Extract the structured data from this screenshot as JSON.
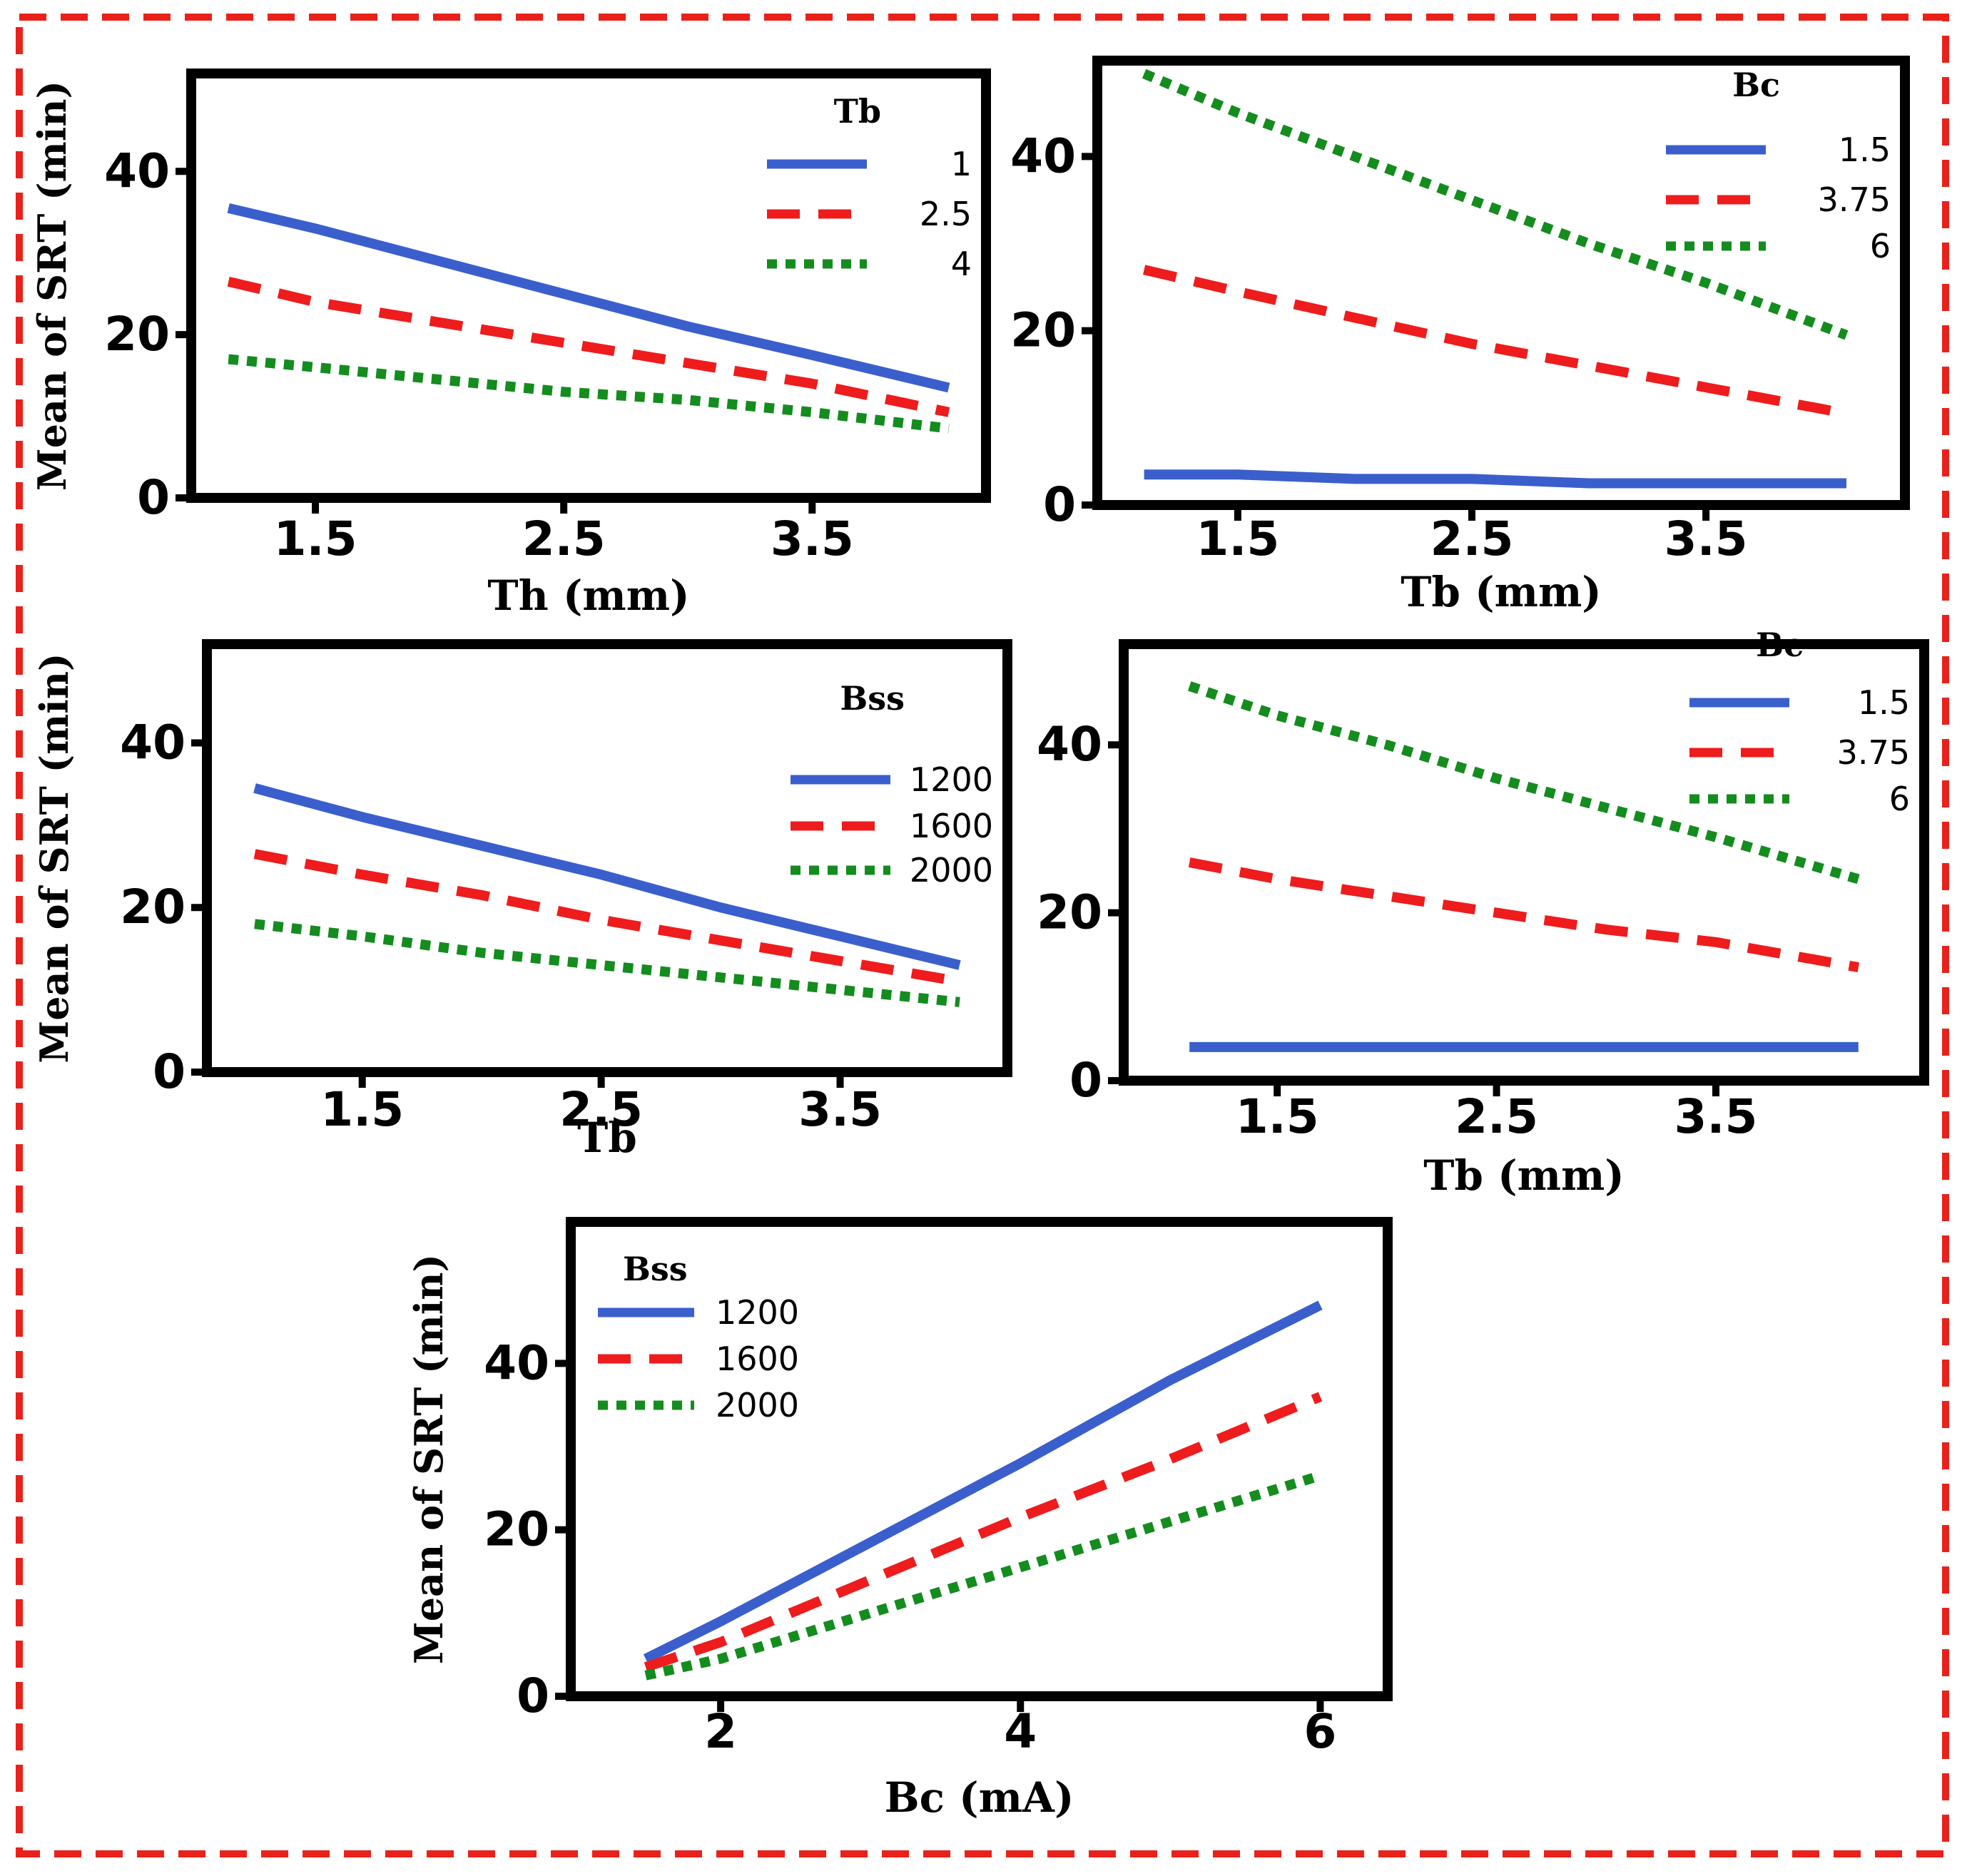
{
  "frame": {
    "border_color": "#e8221b"
  },
  "style": {
    "series_colors": [
      "#3a5fcd",
      "#ee1c1c",
      "#148c1e"
    ],
    "line_styles": [
      "solid",
      "dashed",
      "dotted"
    ]
  },
  "chart_data": [
    {
      "type": "line",
      "xlabel": "Th (mm)",
      "ylabel": "Mean of SRT (min)",
      "xticks": [
        "1.5",
        "2.5",
        "3.5"
      ],
      "yticks": [
        "0",
        "20",
        "40"
      ],
      "xlim": [
        1.0,
        4.2
      ],
      "ylim": [
        0,
        52
      ],
      "legend_title": "Tb",
      "legend_position": "top-right",
      "x": [
        1.15,
        1.5,
        2.0,
        2.5,
        3.0,
        3.5,
        4.05
      ],
      "series": [
        {
          "name": "1",
          "values": [
            35.5,
            33,
            29,
            25,
            21,
            17.5,
            13.5
          ]
        },
        {
          "name": "2.5",
          "values": [
            26.5,
            24,
            21.5,
            19,
            16.5,
            14,
            10.5
          ]
        },
        {
          "name": "4",
          "values": [
            17,
            16,
            14.5,
            13,
            12,
            10.5,
            8.5
          ]
        }
      ]
    },
    {
      "type": "line",
      "xlabel": "Tb (mm)",
      "ylabel": "",
      "xticks": [
        "1.5",
        "2.5",
        "3.5"
      ],
      "yticks": [
        "0",
        "20",
        "40"
      ],
      "xlim": [
        0.9,
        4.35
      ],
      "ylim": [
        0,
        51
      ],
      "legend_title": "Bc",
      "legend_position": "top-right",
      "x": [
        1.1,
        1.5,
        2.0,
        2.5,
        3.0,
        3.5,
        4.1
      ],
      "series": [
        {
          "name": "1.5",
          "values": [
            3.5,
            3.5,
            3,
            3,
            2.5,
            2.5,
            2.5
          ]
        },
        {
          "name": "3.75",
          "values": [
            27,
            24.5,
            21.5,
            18.5,
            16,
            13.5,
            10.5
          ]
        },
        {
          "name": "6",
          "values": [
            49.5,
            45,
            40,
            35,
            30,
            25.5,
            19.5
          ]
        }
      ]
    },
    {
      "type": "line",
      "xlabel": "Tb",
      "ylabel": "Mean of SRT (min)",
      "xticks": [
        "1.5",
        "2.5",
        "3.5"
      ],
      "yticks": [
        "0",
        "20",
        "40"
      ],
      "xlim": [
        0.85,
        4.2
      ],
      "ylim": [
        0,
        52
      ],
      "legend_title": "Bss",
      "legend_position": "top-right",
      "x": [
        1.05,
        1.5,
        2.0,
        2.5,
        3.0,
        3.5,
        4.0
      ],
      "series": [
        {
          "name": "1200",
          "values": [
            34.5,
            31,
            27.5,
            24,
            20,
            16.5,
            13
          ]
        },
        {
          "name": "1600",
          "values": [
            26.5,
            24,
            21.5,
            18.5,
            16,
            13.5,
            11
          ]
        },
        {
          "name": "2000",
          "values": [
            18,
            16.5,
            14.5,
            13,
            11.5,
            10,
            8.5
          ]
        }
      ]
    },
    {
      "type": "line",
      "xlabel": "Tb (mm)",
      "ylabel": "",
      "xticks": [
        "1.5",
        "2.5",
        "3.5"
      ],
      "yticks": [
        "0",
        "20",
        "40"
      ],
      "xlim": [
        0.8,
        4.45
      ],
      "ylim": [
        0,
        52
      ],
      "legend_title": "Bc",
      "legend_position": "top-right",
      "x": [
        1.1,
        1.5,
        2.0,
        2.5,
        3.0,
        3.5,
        4.15
      ],
      "series": [
        {
          "name": "1.5",
          "values": [
            4,
            4,
            4,
            4,
            4,
            4,
            4
          ]
        },
        {
          "name": "3.75",
          "values": [
            26,
            24,
            22,
            20,
            18,
            16.5,
            13.5
          ]
        },
        {
          "name": "6",
          "values": [
            47,
            43.5,
            40,
            36,
            32.5,
            29,
            24
          ]
        }
      ]
    },
    {
      "type": "line",
      "xlabel": "Bc (mA)",
      "ylabel": "Mean of SRT (min)",
      "xticks": [
        "2",
        "4",
        "6"
      ],
      "yticks": [
        "0",
        "20",
        "40"
      ],
      "xlim": [
        1.0,
        6.45
      ],
      "ylim": [
        0,
        57
      ],
      "legend_title": "Bss",
      "legend_position": "top-left",
      "x": [
        1.5,
        2.0,
        3.0,
        4.0,
        5.0,
        6.0
      ],
      "series": [
        {
          "name": "1200",
          "values": [
            4.5,
            9,
            18.5,
            28,
            38,
            47
          ]
        },
        {
          "name": "1600",
          "values": [
            3.5,
            6.5,
            14,
            21.5,
            28.5,
            36
          ]
        },
        {
          "name": "2000",
          "values": [
            2.5,
            4.5,
            10,
            15.5,
            21,
            26.5
          ]
        }
      ]
    }
  ]
}
